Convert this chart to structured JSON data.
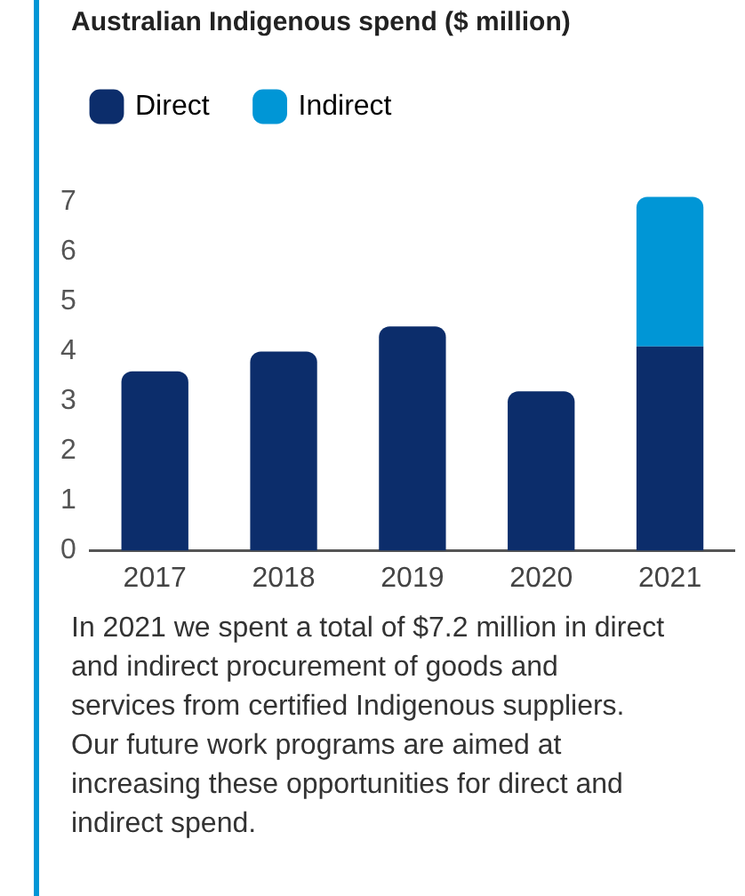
{
  "chart_data": {
    "type": "bar",
    "title": "Australian Indigenous spend ($ million)",
    "categories": [
      "2017",
      "2018",
      "2019",
      "2020",
      "2021"
    ],
    "series": [
      {
        "name": "Direct",
        "color": "#0c2d6b",
        "values": [
          3.6,
          4.0,
          4.5,
          3.2,
          4.1
        ]
      },
      {
        "name": "Indirect",
        "color": "#0096d6",
        "values": [
          null,
          null,
          null,
          null,
          3.0
        ]
      }
    ],
    "stacked": true,
    "ylim": [
      0,
      7.2
    ],
    "yticks": [
      0,
      1,
      2,
      3,
      4,
      5,
      6,
      7
    ],
    "grid": false,
    "legend": "top left",
    "annotations": [
      "In 2021 we spent a total of $7.2 million in direct and indirect procurement of goods and services from certified Indigenous suppliers. Our future work programs are aimed at increasing these opportunities for direct and indirect spend."
    ]
  }
}
